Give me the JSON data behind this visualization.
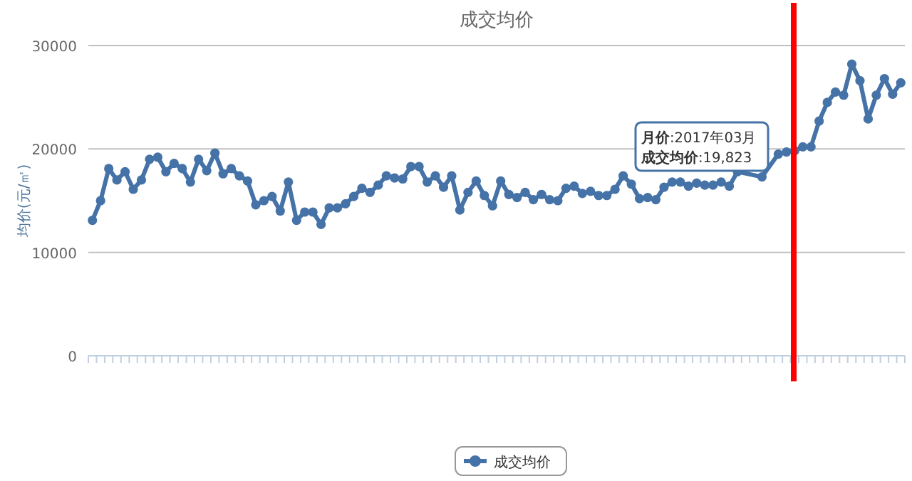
{
  "chart_data": {
    "type": "line",
    "title": "成交均价",
    "ylabel": "均价(元/㎡)",
    "categories": [
      null,
      null,
      null,
      null,
      null,
      null,
      null,
      null,
      null,
      null,
      null,
      null,
      null,
      null,
      null,
      null,
      null,
      null,
      null,
      null,
      null,
      null,
      null,
      null,
      null,
      null,
      null,
      null,
      null,
      null,
      null,
      null,
      null,
      null,
      null,
      null,
      null,
      null,
      null,
      null,
      null,
      null,
      null,
      null,
      null,
      null,
      null,
      null,
      null,
      null,
      null,
      null,
      null,
      null,
      null,
      null,
      null,
      null,
      null,
      null,
      null,
      null,
      null,
      null,
      null,
      null,
      null,
      null,
      null,
      null,
      null,
      null,
      null,
      null,
      null,
      null,
      null,
      null,
      null,
      null,
      null,
      null,
      null,
      null,
      null,
      null,
      null,
      null,
      null,
      null,
      null,
      null,
      null,
      null,
      null,
      null,
      null,
      null,
      null,
      null
    ],
    "series": [
      {
        "name": "成交均价",
        "color": "#4572a7",
        "values": [
          13100,
          15000,
          18100,
          17000,
          17800,
          16100,
          17000,
          19000,
          19200,
          17800,
          18600,
          18100,
          16800,
          19000,
          17900,
          19600,
          17600,
          18100,
          17400,
          16900,
          14600,
          15000,
          15400,
          14000,
          16800,
          13100,
          13900,
          13900,
          12700,
          14300,
          14300,
          14700,
          15400,
          16200,
          15800,
          16500,
          17400,
          17200,
          17100,
          18300,
          18300,
          16800,
          17400,
          16300,
          17400,
          14100,
          15800,
          16900,
          15500,
          14500,
          16900,
          15600,
          15300,
          15800,
          15100,
          15600,
          15100,
          15000,
          16200,
          16400,
          15700,
          15900,
          15500,
          15500,
          16100,
          17400,
          16600,
          15200,
          15300,
          15100,
          16300,
          16800,
          16800,
          16400,
          16700,
          16500,
          16500,
          16800,
          16400,
          17800,
          null,
          null,
          17300,
          null,
          19500,
          19700,
          19823,
          20200,
          20200,
          22700,
          24500,
          25500,
          25200,
          28200,
          26600,
          22900,
          25200,
          26800,
          25300,
          26400
        ]
      }
    ],
    "ylim": [
      0,
      30000
    ],
    "yticks": [
      0,
      10000,
      20000,
      30000
    ],
    "grid": "y",
    "legend": "bottom",
    "marker": "circle",
    "line_style": "solid",
    "annotations": [
      "**月价**:2017年03月",
      "**成交均价**:19,823"
    ]
  }
}
